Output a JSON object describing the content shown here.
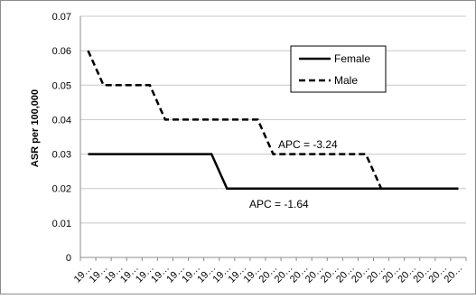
{
  "chart_data": {
    "type": "line",
    "title": "",
    "xlabel": "",
    "ylabel": "ASR per 100,000",
    "ylim": [
      0,
      0.07
    ],
    "yticks": [
      "0",
      "0.01",
      "0.02",
      "0.03",
      "0.04",
      "0.05",
      "0.06",
      "0.07"
    ],
    "categories": [
      "19…",
      "19…",
      "19…",
      "19…",
      "19…",
      "19…",
      "19…",
      "19…",
      "19…",
      "19…",
      "19…",
      "19…",
      "20…",
      "20…",
      "20…",
      "20…",
      "20…",
      "20…",
      "20…",
      "20…",
      "20…",
      "20…",
      "20…",
      "20…",
      "20…"
    ],
    "series": [
      {
        "name": "Female",
        "style": "solid",
        "color": "#000000",
        "values": [
          0.03,
          0.03,
          0.03,
          0.03,
          0.03,
          0.03,
          0.03,
          0.03,
          0.03,
          0.02,
          0.02,
          0.02,
          0.02,
          0.02,
          0.02,
          0.02,
          0.02,
          0.02,
          0.02,
          0.02,
          0.02,
          0.02,
          0.02,
          0.02,
          0.02
        ]
      },
      {
        "name": "Male",
        "style": "dashed",
        "color": "#000000",
        "values": [
          0.06,
          0.05,
          0.05,
          0.05,
          0.05,
          0.04,
          0.04,
          0.04,
          0.04,
          0.04,
          0.04,
          0.04,
          0.03,
          0.03,
          0.03,
          0.03,
          0.03,
          0.03,
          0.03,
          0.02,
          0.02,
          0.02,
          0.02,
          0.02,
          0.02
        ]
      }
    ],
    "annotations": [
      {
        "text": "APC = -3.24"
      },
      {
        "text": "APC = -1.64"
      }
    ],
    "legend_position": "top-right",
    "grid": true,
    "grid_color": "#c8c8c8",
    "border_color": "#8c8c8c"
  }
}
